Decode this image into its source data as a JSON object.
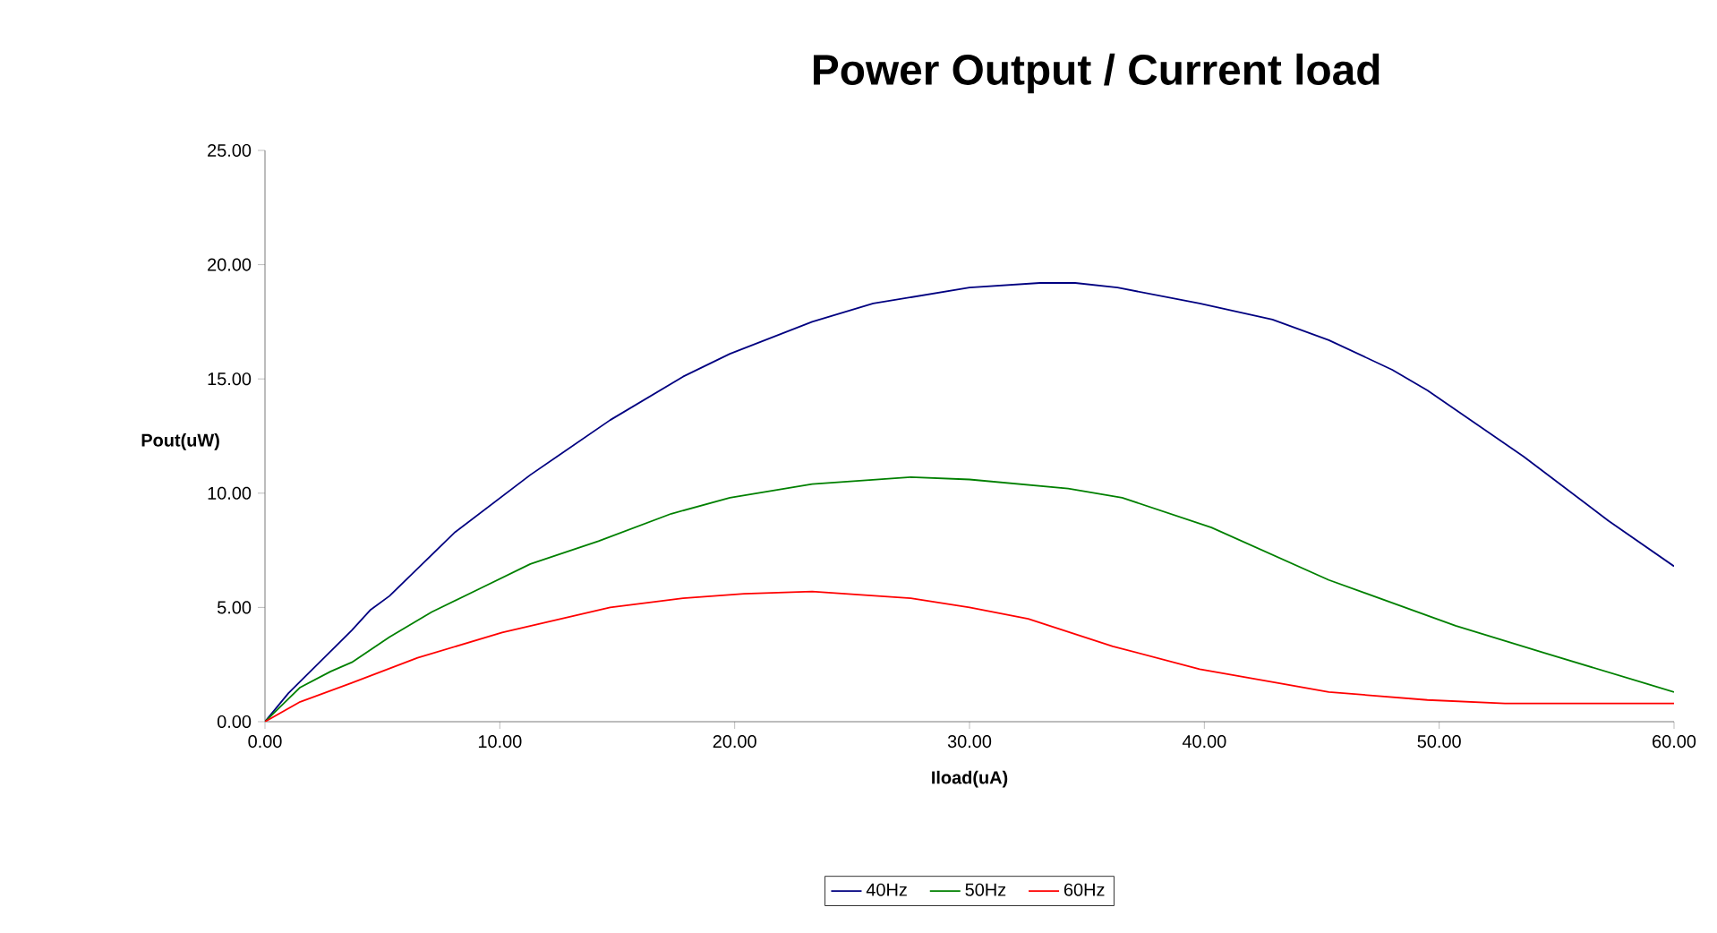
{
  "chart_data": {
    "type": "line",
    "title": "Power Output / Current load",
    "xlabel": "Iload(uA)",
    "ylabel": "Pout(uW)",
    "xlim": [
      0,
      60
    ],
    "ylim": [
      0,
      25
    ],
    "xticks": [
      {
        "value": 0,
        "label": "0.00"
      },
      {
        "value": 10,
        "label": "10.00"
      },
      {
        "value": 20,
        "label": "20.00"
      },
      {
        "value": 30,
        "label": "30.00"
      },
      {
        "value": 40,
        "label": "40.00"
      },
      {
        "value": 50,
        "label": "50.00"
      },
      {
        "value": 60,
        "label": "60.00"
      }
    ],
    "yticks": [
      {
        "value": 0,
        "label": "0.00"
      },
      {
        "value": 5,
        "label": "5.00"
      },
      {
        "value": 10,
        "label": "10.00"
      },
      {
        "value": 15,
        "label": "15.00"
      },
      {
        "value": 20,
        "label": "20.00"
      },
      {
        "value": 25,
        "label": "25.00"
      }
    ],
    "grid": false,
    "legend": "bottom",
    "marker": "none",
    "line_style": "solid",
    "series": [
      {
        "name": "40Hz",
        "color": "#000080",
        "x": [
          0,
          1.0,
          3.7,
          4.5,
          5.3,
          8.1,
          11.3,
          14.7,
          17.8,
          19.8,
          23.3,
          25.9,
          30.0,
          33.0,
          34.5,
          36.3,
          39.8,
          42.9,
          45.3,
          48.0,
          49.5,
          53.6,
          57.2,
          60.0
        ],
        "values": [
          0,
          1.25,
          4.0,
          4.9,
          5.5,
          8.3,
          10.8,
          13.2,
          15.1,
          16.1,
          17.5,
          18.3,
          19.0,
          19.2,
          19.2,
          19.0,
          18.3,
          17.6,
          16.7,
          15.4,
          14.5,
          11.6,
          8.8,
          6.8
        ]
      },
      {
        "name": "50Hz",
        "color": "#008000",
        "x": [
          0,
          1.5,
          2.8,
          3.7,
          5.3,
          7.1,
          9.1,
          11.3,
          14.2,
          17.3,
          19.8,
          23.3,
          27.5,
          30.0,
          34.2,
          36.5,
          40.3,
          45.3,
          50.7,
          54.5,
          60.0
        ],
        "values": [
          0,
          1.5,
          2.2,
          2.6,
          3.7,
          4.8,
          5.8,
          6.9,
          7.9,
          9.1,
          9.8,
          10.4,
          10.7,
          10.6,
          10.2,
          9.8,
          8.5,
          6.2,
          4.2,
          3.0,
          1.3
        ]
      },
      {
        "name": "60Hz",
        "color": "#ff0000",
        "x": [
          0,
          1.5,
          3.7,
          6.5,
          10.1,
          14.7,
          17.8,
          20.4,
          23.3,
          27.5,
          30.0,
          32.5,
          36.1,
          39.8,
          45.3,
          49.5,
          52.8,
          60.0
        ],
        "values": [
          0,
          0.87,
          1.7,
          2.8,
          3.9,
          5.0,
          5.4,
          5.6,
          5.7,
          5.4,
          5.0,
          4.5,
          3.3,
          2.3,
          1.3,
          0.95,
          0.8,
          0.8
        ]
      }
    ]
  }
}
